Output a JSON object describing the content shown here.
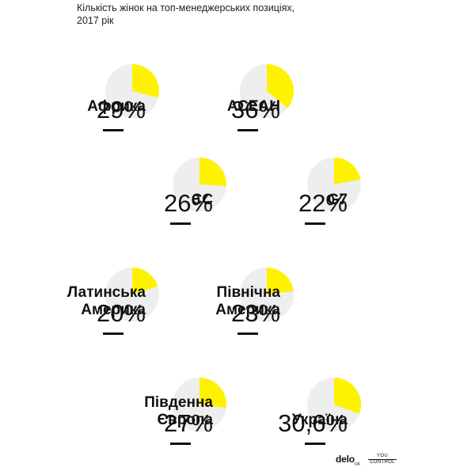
{
  "title_lines": [
    "Кількість жінок на топ-менеджерських позиціях,",
    "2017 рік"
  ],
  "colors": {
    "accent": "#fff200",
    "remainder": "#eeeeee",
    "text": "#111111"
  },
  "chart_data": {
    "type": "pie",
    "title": "Кількість жінок на топ-менеджерських позиціях, 2017 рік",
    "series": [
      {
        "name": "Африка",
        "label_lines": [
          "Африка"
        ],
        "percent_label": "29%",
        "value": 29
      },
      {
        "name": "АСЕАН",
        "label_lines": [
          "АСЕАН"
        ],
        "percent_label": "36%",
        "value": 36
      },
      {
        "name": "ЄС",
        "label_lines": [
          "ЄС"
        ],
        "percent_label": "26%",
        "value": 26
      },
      {
        "name": "G7",
        "label_lines": [
          "G7"
        ],
        "percent_label": "22%",
        "value": 22
      },
      {
        "name": "Латинська Америка",
        "label_lines": [
          "Латинська",
          "Америка"
        ],
        "percent_label": "20%",
        "value": 20
      },
      {
        "name": "Північна Америка",
        "label_lines": [
          "Північна",
          "Америка"
        ],
        "percent_label": "23%",
        "value": 23
      },
      {
        "name": "Південна Європа",
        "label_lines": [
          "Південна",
          "Європа"
        ],
        "percent_label": "27%",
        "value": 27
      },
      {
        "name": "Україна",
        "label_lines": [
          "Україна"
        ],
        "percent_label": "30,6%",
        "value": 30.6
      }
    ]
  },
  "logos": {
    "delo": "delo",
    "delo_suffix": "UA",
    "yc_line1": "YOU",
    "yc_line2": "CONTROL"
  }
}
